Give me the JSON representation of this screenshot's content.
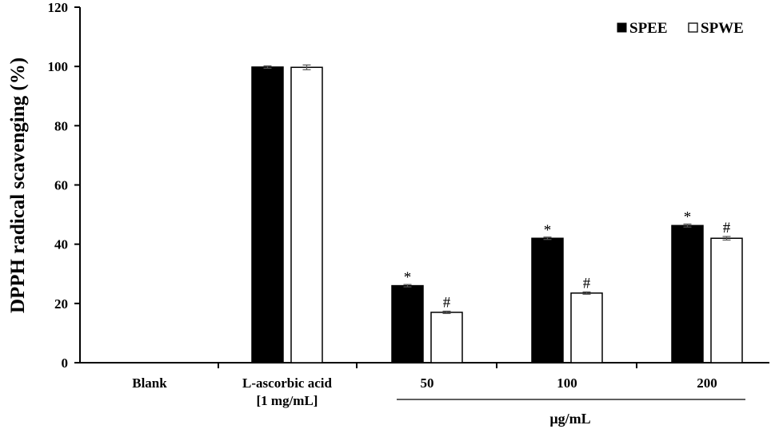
{
  "chart_data": {
    "type": "bar",
    "title": "",
    "ylabel": "DPPH  radical scavenging (%)",
    "xlabel": "",
    "ylim": [
      0,
      120
    ],
    "yticks": [
      0,
      20,
      40,
      60,
      80,
      100,
      120
    ],
    "grid": false,
    "legend_position": "top-right",
    "categories": [
      {
        "line1": "Blank",
        "line2": ""
      },
      {
        "line1": "L-ascorbic acid",
        "line2": "[1 mg/mL]"
      },
      {
        "line1": "50",
        "line2": ""
      },
      {
        "line1": "100",
        "line2": ""
      },
      {
        "line1": "200",
        "line2": ""
      }
    ],
    "group_label": "µg/mL",
    "series": [
      {
        "name": "SPEE",
        "color": "#000000",
        "values": [
          null,
          99.8,
          26.0,
          42.0,
          46.3
        ],
        "errors": [
          null,
          0.4,
          0.4,
          0.4,
          0.5
        ],
        "annotations": [
          "",
          "",
          "*",
          "*",
          "*"
        ]
      },
      {
        "name": "SPWE",
        "color": "#ffffff",
        "values": [
          null,
          99.7,
          17.0,
          23.5,
          42.0
        ],
        "errors": [
          null,
          0.8,
          0.4,
          0.4,
          0.6
        ],
        "annotations": [
          "",
          "",
          "#",
          "#",
          "#"
        ]
      }
    ]
  }
}
